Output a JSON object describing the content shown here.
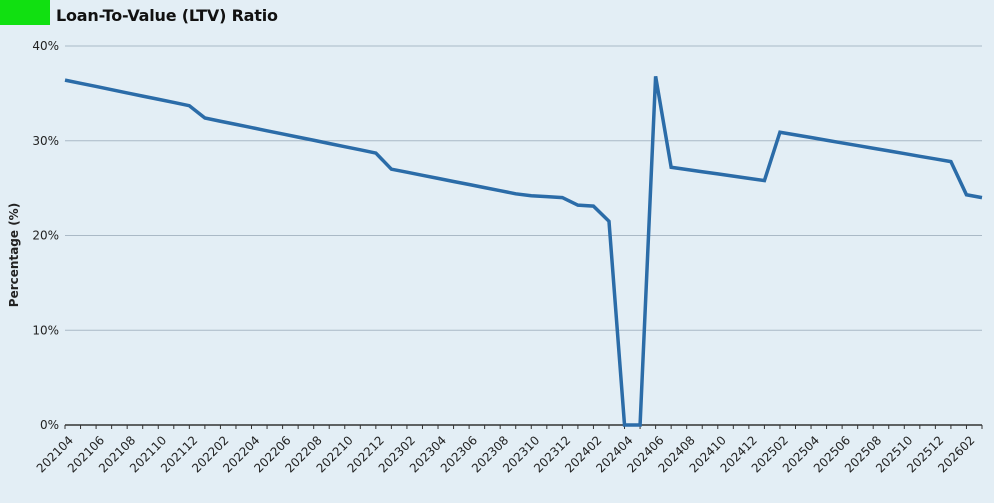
{
  "header": {
    "title": "Loan-To-Value (LTV) Ratio",
    "accent_color": "#11e011"
  },
  "chart_data": {
    "type": "line",
    "title": "Loan-To-Value (LTV) Ratio",
    "xlabel": "",
    "ylabel": "Percentage (%)",
    "ylim": [
      0,
      40
    ],
    "yticks": [
      0,
      10,
      20,
      30,
      40
    ],
    "ytick_labels": [
      "0%",
      "10%",
      "20%",
      "30%",
      "40%"
    ],
    "grid": true,
    "tick_label_every": 2,
    "categories": [
      "202104",
      "202105",
      "202106",
      "202107",
      "202108",
      "202109",
      "202110",
      "202111",
      "202112",
      "202201",
      "202202",
      "202203",
      "202204",
      "202205",
      "202206",
      "202207",
      "202208",
      "202209",
      "202210",
      "202211",
      "202212",
      "202301",
      "202302",
      "202303",
      "202304",
      "202305",
      "202306",
      "202307",
      "202308",
      "202309",
      "202310",
      "202311",
      "202312",
      "202401",
      "202402",
      "202403",
      "202404",
      "202405",
      "202406",
      "202407",
      "202408",
      "202409",
      "202410",
      "202411",
      "202412",
      "202501",
      "202502",
      "202503",
      "202504",
      "202505",
      "202506",
      "202507",
      "202508",
      "202509",
      "202510",
      "202511",
      "202512",
      "202601",
      "202602",
      "202603"
    ],
    "series": [
      {
        "name": "LTV",
        "color": "#2b6ca8",
        "values": [
          36.4,
          36.06,
          35.73,
          35.39,
          35.05,
          34.71,
          34.38,
          34.04,
          33.7,
          32.4,
          32.06,
          31.73,
          31.39,
          31.05,
          30.72,
          30.38,
          30.05,
          29.71,
          29.37,
          29.04,
          28.7,
          27.0,
          26.68,
          26.35,
          26.03,
          25.7,
          25.38,
          25.05,
          24.73,
          24.4,
          24.2,
          24.1,
          24.0,
          23.2,
          23.1,
          21.5,
          0,
          0,
          36.8,
          27.2,
          26.97,
          26.73,
          26.5,
          26.27,
          26.03,
          25.8,
          30.9,
          30.62,
          30.34,
          30.05,
          29.77,
          29.49,
          29.21,
          28.93,
          28.65,
          28.36,
          28.08,
          27.8,
          24.3,
          24.0
        ]
      }
    ]
  }
}
